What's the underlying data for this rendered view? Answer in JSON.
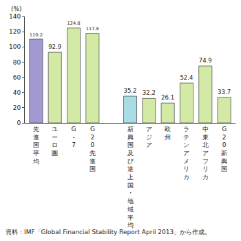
{
  "chart_data": {
    "type": "bar",
    "ylabel": "(%)",
    "categories": [
      "先進国平均",
      "ユーロ圏",
      "G-7",
      "G20先進国",
      null,
      "新興国及び途上国・地域平均",
      "アジア",
      "欧州",
      "ラテンアメリカ",
      "中東北アフリカ",
      "G20新興国"
    ],
    "values": [
      110.2,
      92.9,
      124.8,
      117.8,
      null,
      35.2,
      32.2,
      26.1,
      52.4,
      74.9,
      33.7
    ],
    "colors": [
      "#a29bd3",
      "#d3eaa6",
      "#d3eaa6",
      "#d3eaa6",
      null,
      "#a9dde6",
      "#d3eaa6",
      "#d3eaa6",
      "#d3eaa6",
      "#d3eaa6",
      "#d3eaa6"
    ],
    "ylim": [
      0,
      140
    ],
    "yticks": [
      0,
      20,
      40,
      60,
      80,
      100,
      120,
      140
    ],
    "grid": false,
    "data_labels": true,
    "source": "資料：IMF「Global Financial Stability Report April 2013」から作成。"
  }
}
